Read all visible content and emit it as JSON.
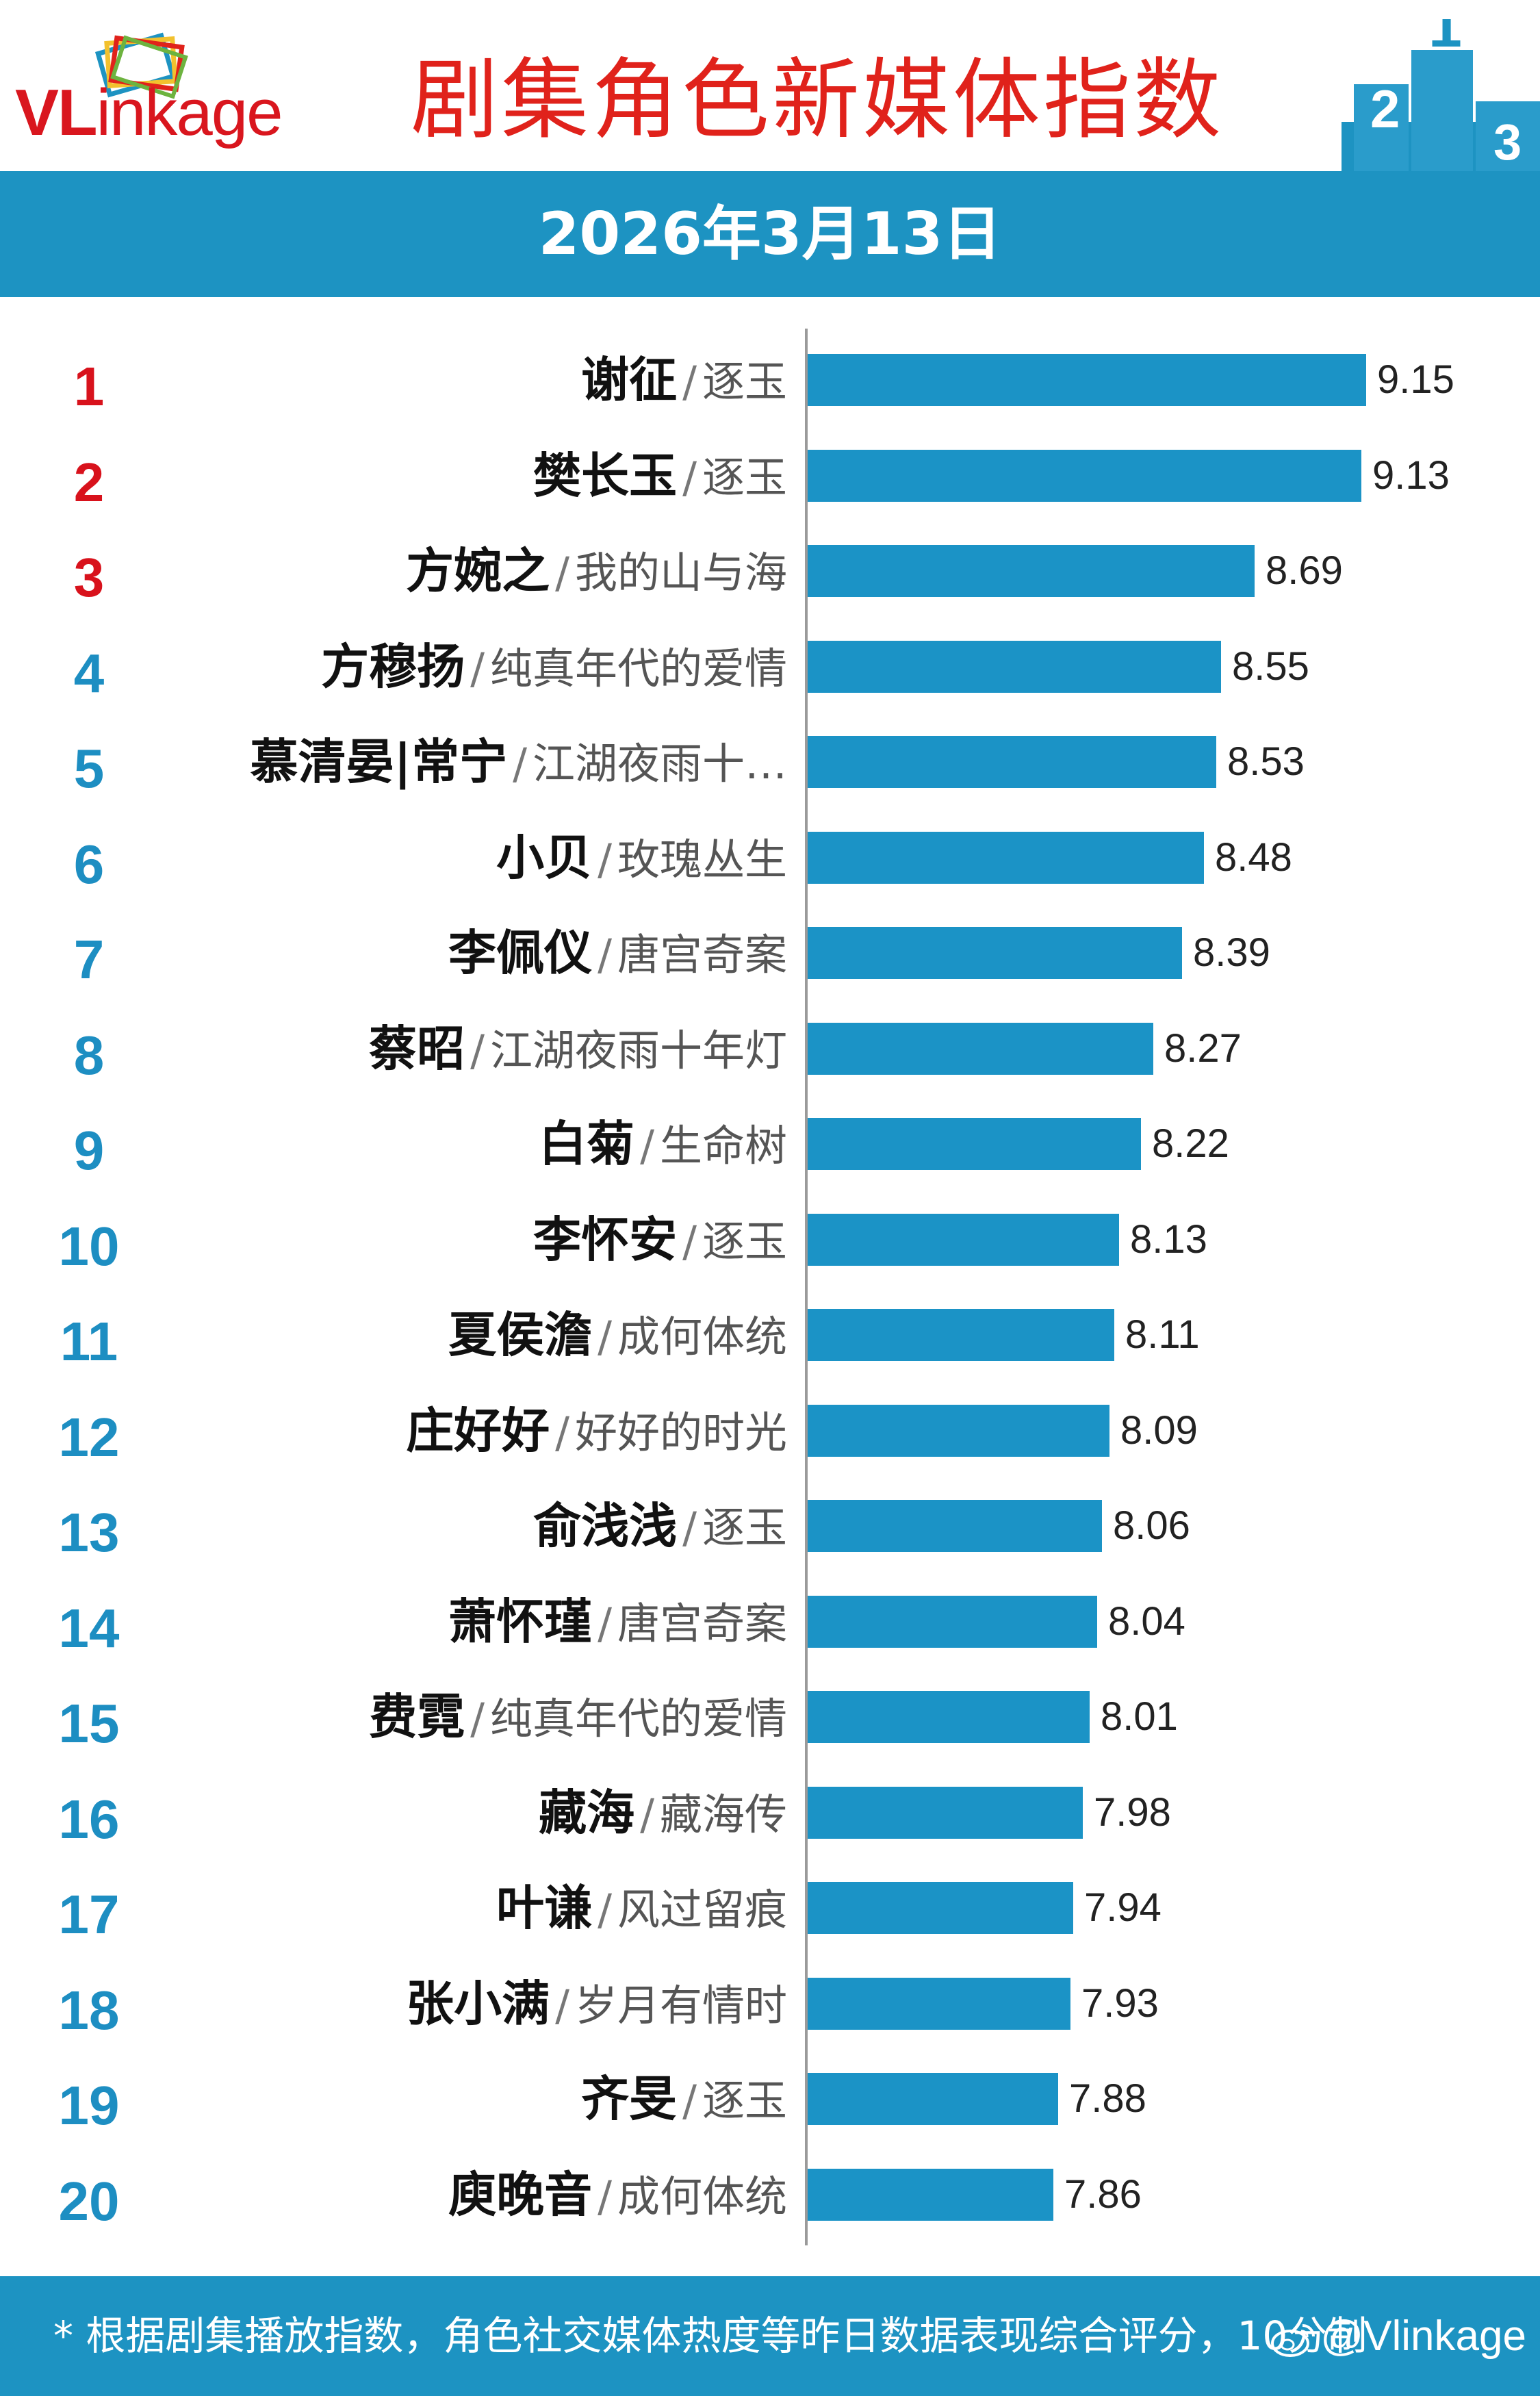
{
  "header": {
    "logo_text_red": "VL",
    "logo_text_rest": "inkage",
    "title": "剧集角色新媒体指数",
    "podium_numbers": [
      "2",
      "1",
      "3"
    ]
  },
  "date": "2026年3月13日",
  "colors": {
    "accent": "#1d93c2",
    "title": "#e0221b",
    "top_rank": "#d8121c",
    "rank": "#1d8ec2",
    "bar": "#1b93c6"
  },
  "chart_data": {
    "type": "bar",
    "orientation": "horizontal",
    "title": "剧集角色新媒体指数",
    "subtitle": "2026年3月13日",
    "xlim": [
      0,
      10
    ],
    "rows": [
      {
        "rank": "1",
        "name": "谢征",
        "show": "逐玉",
        "value": 9.15
      },
      {
        "rank": "2",
        "name": "樊长玉",
        "show": "逐玉",
        "value": 9.13
      },
      {
        "rank": "3",
        "name": "方婉之",
        "show": "我的山与海",
        "value": 8.69
      },
      {
        "rank": "4",
        "name": "方穆扬",
        "show": "纯真年代的爱情",
        "value": 8.55
      },
      {
        "rank": "5",
        "name": "慕清晏|常宁",
        "show": "江湖夜雨十…",
        "value": 8.53
      },
      {
        "rank": "6",
        "name": "小贝",
        "show": "玫瑰丛生",
        "value": 8.48
      },
      {
        "rank": "7",
        "name": "李佩仪",
        "show": "唐宫奇案",
        "value": 8.39
      },
      {
        "rank": "8",
        "name": "蔡昭",
        "show": "江湖夜雨十年灯",
        "value": 8.27
      },
      {
        "rank": "9",
        "name": "白菊",
        "show": "生命树",
        "value": 8.22
      },
      {
        "rank": "10",
        "name": "李怀安",
        "show": "逐玉",
        "value": 8.13
      },
      {
        "rank": "11",
        "name": "夏侯澹",
        "show": "成何体统",
        "value": 8.11
      },
      {
        "rank": "12",
        "name": "庄好好",
        "show": "好好的时光",
        "value": 8.09
      },
      {
        "rank": "13",
        "name": "俞浅浅",
        "show": "逐玉",
        "value": 8.06
      },
      {
        "rank": "14",
        "name": "萧怀瑾",
        "show": "唐宫奇案",
        "value": 8.04
      },
      {
        "rank": "15",
        "name": "费霓",
        "show": "纯真年代的爱情",
        "value": 8.01
      },
      {
        "rank": "16",
        "name": "藏海",
        "show": "藏海传",
        "value": 7.98
      },
      {
        "rank": "17",
        "name": "叶谦",
        "show": "风过留痕",
        "value": 7.94
      },
      {
        "rank": "18",
        "name": "张小满",
        "show": "岁月有情时",
        "value": 7.93
      },
      {
        "rank": "19",
        "name": "齐旻",
        "show": "逐玉",
        "value": 7.88
      },
      {
        "rank": "20",
        "name": "庾晚音",
        "show": "成何体统",
        "value": 7.86
      }
    ]
  },
  "footer": {
    "note": "* 根据剧集播放指数，角色社交媒体热度等昨日数据表现综合评分，10分制",
    "watermark": "@Vlinkage"
  }
}
